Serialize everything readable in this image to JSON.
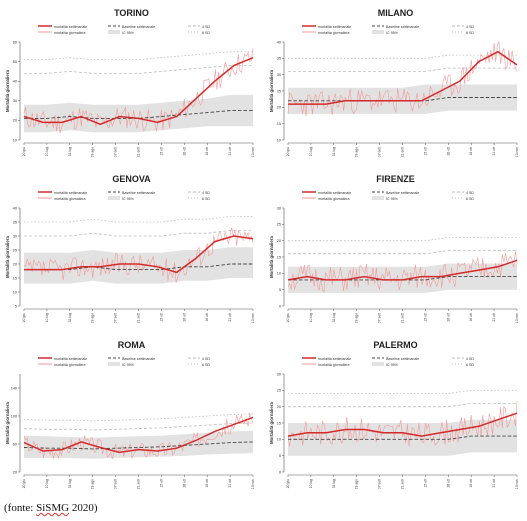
{
  "legend_labels": {
    "weekly": "mortalità settimanale",
    "daily": "mortalità giornaliera",
    "baseline": "Baseline settimanale",
    "ic": "IC 95%",
    "sd4": "4 SD",
    "sd6": "6 SD"
  },
  "ylabel": "Mortalità giornaliera",
  "x_ticks": [
    "20 giu",
    "10 lug",
    "31 lug",
    "19 ago",
    "07 sett",
    "21 sett",
    "15 ott",
    "26 ott",
    "16 ott",
    "21 ott",
    "13 nov"
  ],
  "source": {
    "prefix": "(fonte: ",
    "org": "SiSMG",
    "suffix": " 2020)"
  },
  "colors": {
    "weekly": "#d42a2a",
    "daily": "#f29a9a",
    "baseline": "#444444",
    "ic_band": "#e2e2e2",
    "sd_lines": "#bdbdbd"
  },
  "chart_data": [
    {
      "type": "line",
      "title": "TORINO",
      "ylim": [
        10,
        60
      ],
      "yticks": [
        10,
        20,
        30,
        40,
        50,
        60
      ],
      "baseline": [
        21,
        21,
        22,
        21,
        21,
        21,
        22,
        23,
        24,
        25,
        25
      ],
      "ic": [
        [
          14,
          28
        ],
        [
          14,
          28
        ],
        [
          15,
          29
        ],
        [
          14,
          28
        ],
        [
          14,
          28
        ],
        [
          14,
          28
        ],
        [
          15,
          29
        ],
        [
          16,
          30
        ],
        [
          17,
          31
        ],
        [
          17,
          33
        ],
        [
          17,
          33
        ]
      ],
      "sd4": [
        44,
        44,
        45,
        44,
        44,
        44,
        45,
        46,
        47,
        48,
        48
      ],
      "sd6": [
        51,
        51,
        52,
        51,
        51,
        51,
        52,
        53,
        54,
        55,
        55
      ],
      "weekly": [
        22,
        19,
        19,
        22,
        18,
        22,
        21,
        19,
        22,
        31,
        40,
        48,
        52
      ],
      "daily_seed": 11,
      "daily_amp": 6
    },
    {
      "type": "line",
      "title": "MILANO",
      "ylim": [
        10,
        40
      ],
      "yticks": [
        10,
        15,
        20,
        25,
        30,
        35,
        40
      ],
      "baseline": [
        22,
        22,
        22,
        22,
        22,
        22,
        22,
        23,
        23,
        23,
        23
      ],
      "ic": [
        [
          18,
          26
        ],
        [
          18,
          26
        ],
        [
          18,
          26
        ],
        [
          18,
          26
        ],
        [
          18,
          26
        ],
        [
          18,
          26
        ],
        [
          18,
          27
        ],
        [
          19,
          27
        ],
        [
          19,
          27
        ],
        [
          19,
          27
        ],
        [
          19,
          27
        ]
      ],
      "sd4": [
        31,
        31,
        31,
        31,
        31,
        31,
        31,
        32,
        32,
        32,
        32
      ],
      "sd6": [
        35,
        35,
        35,
        35,
        35,
        35,
        35,
        36,
        36,
        36,
        36
      ],
      "weekly": [
        21,
        21,
        21,
        22,
        22,
        22,
        22,
        22,
        25,
        28,
        34,
        37,
        33
      ],
      "daily_seed": 23,
      "daily_amp": 4
    },
    {
      "type": "line",
      "title": "GENOVA",
      "ylim": [
        5,
        40
      ],
      "yticks": [
        5,
        10,
        15,
        20,
        25,
        30,
        35,
        40
      ],
      "baseline": [
        18,
        18,
        18,
        19,
        18,
        18,
        18,
        19,
        19,
        20,
        20
      ],
      "ic": [
        [
          13,
          24
        ],
        [
          13,
          24
        ],
        [
          13,
          24
        ],
        [
          14,
          25
        ],
        [
          13,
          24
        ],
        [
          13,
          24
        ],
        [
          13,
          24
        ],
        [
          14,
          25
        ],
        [
          14,
          25
        ],
        [
          15,
          26
        ],
        [
          15,
          26
        ]
      ],
      "sd4": [
        30,
        30,
        30,
        31,
        30,
        30,
        30,
        31,
        31,
        32,
        32
      ],
      "sd6": [
        35,
        35,
        35,
        36,
        35,
        35,
        35,
        36,
        36,
        37,
        37
      ],
      "weekly": [
        18,
        18,
        18,
        19,
        19,
        20,
        20,
        19,
        17,
        22,
        28,
        30,
        29
      ],
      "daily_seed": 37,
      "daily_amp": 4
    },
    {
      "type": "line",
      "title": "FIRENZE",
      "ylim": [
        0,
        30
      ],
      "yticks": [
        0,
        5,
        10,
        15,
        20,
        25,
        30
      ],
      "baseline": [
        8,
        8,
        8,
        8,
        8,
        8,
        8,
        9,
        9,
        9,
        9
      ],
      "ic": [
        [
          4,
          12
        ],
        [
          4,
          12
        ],
        [
          4,
          12
        ],
        [
          4,
          12
        ],
        [
          4,
          12
        ],
        [
          4,
          12
        ],
        [
          4,
          12
        ],
        [
          5,
          13
        ],
        [
          5,
          13
        ],
        [
          5,
          13
        ],
        [
          5,
          13
        ]
      ],
      "sd4": [
        16,
        16,
        16,
        16,
        16,
        16,
        16,
        17,
        17,
        17,
        17
      ],
      "sd6": [
        20,
        20,
        20,
        20,
        20,
        20,
        20,
        21,
        21,
        21,
        21
      ],
      "weekly": [
        8,
        9,
        8,
        8,
        9,
        8,
        8,
        9,
        9,
        10,
        11,
        12,
        14
      ],
      "daily_seed": 51,
      "daily_amp": 4
    },
    {
      "type": "line",
      "title": "ROMA",
      "ylim": [
        20,
        160
      ],
      "yticks": [
        20,
        60,
        100,
        140
      ],
      "baseline": [
        55,
        54,
        54,
        53,
        54,
        55,
        56,
        58,
        60,
        62,
        63
      ],
      "ic": [
        [
          40,
          72
        ],
        [
          40,
          71
        ],
        [
          40,
          70
        ],
        [
          39,
          69
        ],
        [
          40,
          70
        ],
        [
          41,
          71
        ],
        [
          42,
          72
        ],
        [
          43,
          74
        ],
        [
          45,
          76
        ],
        [
          46,
          78
        ],
        [
          47,
          79
        ]
      ],
      "sd4": [
        82,
        81,
        81,
        80,
        81,
        82,
        83,
        85,
        87,
        89,
        90
      ],
      "sd6": [
        95,
        94,
        94,
        93,
        94,
        95,
        96,
        98,
        100,
        102,
        103
      ],
      "weekly": [
        62,
        50,
        52,
        63,
        55,
        48,
        52,
        50,
        54,
        65,
        78,
        88,
        98
      ],
      "daily_seed": 67,
      "daily_amp": 12
    },
    {
      "type": "line",
      "title": "PALERMO",
      "ylim": [
        0,
        30
      ],
      "yticks": [
        0,
        5,
        10,
        15,
        20,
        25,
        30
      ],
      "baseline": [
        10,
        10,
        10,
        10,
        10,
        10,
        10,
        10,
        11,
        11,
        11
      ],
      "ic": [
        [
          5,
          15
        ],
        [
          5,
          15
        ],
        [
          5,
          15
        ],
        [
          5,
          15
        ],
        [
          5,
          15
        ],
        [
          5,
          15
        ],
        [
          5,
          15
        ],
        [
          5,
          15
        ],
        [
          6,
          16
        ],
        [
          6,
          16
        ],
        [
          6,
          16
        ]
      ],
      "sd4": [
        20,
        20,
        20,
        20,
        20,
        20,
        20,
        20,
        21,
        21,
        21
      ],
      "sd6": [
        24,
        24,
        24,
        24,
        24,
        24,
        24,
        24,
        25,
        25,
        25
      ],
      "weekly": [
        11,
        12,
        12,
        13,
        13,
        12,
        12,
        11,
        12,
        13,
        14,
        16,
        18
      ],
      "daily_seed": 83,
      "daily_amp": 4
    }
  ]
}
